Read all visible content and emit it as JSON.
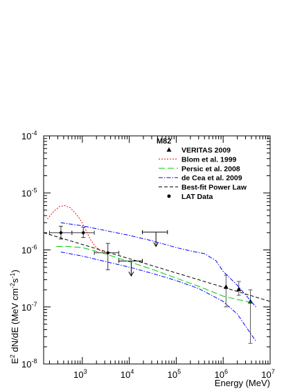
{
  "chart_data": {
    "type": "scatter",
    "title": "",
    "xlabel": "Energy (MeV)",
    "ylabel": {
      "prefix": "E",
      "prefix_sup": "2",
      "main": " dN/dE (MeV cm",
      "unit_sup1": "-2",
      "mid": "s",
      "unit_sup2": "-1",
      "suffix": ")"
    },
    "x_scale": "log",
    "y_scale": "log",
    "xlim": [
      150,
      10000000
    ],
    "ylim": [
      1e-08,
      0.0001
    ],
    "grid": false,
    "legend_position": "top-right",
    "x_ticks": [
      {
        "value": 1000,
        "base": "10",
        "exp": "3"
      },
      {
        "value": 10000,
        "base": "10",
        "exp": "4"
      },
      {
        "value": 100000,
        "base": "10",
        "exp": "5"
      },
      {
        "value": 1000000,
        "base": "10",
        "exp": "6"
      },
      {
        "value": 10000000,
        "base": "10",
        "exp": "7"
      }
    ],
    "y_ticks": [
      {
        "value": 1e-08,
        "base": "10",
        "exp": "-8"
      },
      {
        "value": 1e-07,
        "base": "10",
        "exp": "-7"
      },
      {
        "value": 1e-06,
        "base": "10",
        "exp": "-6"
      },
      {
        "value": 1e-05,
        "base": "10",
        "exp": "-5"
      },
      {
        "value": 0.0001,
        "base": "10",
        "exp": "-4"
      }
    ],
    "legend": {
      "header": "M82",
      "entries": [
        {
          "label": "VERITAS 2009",
          "symbol": "triangle",
          "color": "#000000"
        },
        {
          "label": "Blom et al. 1999",
          "symbol": "line",
          "dash": "2,2",
          "color": "#ff0000"
        },
        {
          "label": "Persic et al. 2008",
          "symbol": "line",
          "dash": "9,4",
          "color": "#00cc00"
        },
        {
          "label": "de Cea et al. 2009",
          "symbol": "line",
          "dash": "6,2,1.5,2",
          "color": "#0000ff"
        },
        {
          "label": "Best-fit Power Law",
          "symbol": "line",
          "dash": "5,3",
          "color": "#000000"
        },
        {
          "label": "LAT Data",
          "symbol": "dot",
          "color": "#000000"
        }
      ]
    },
    "series": [
      {
        "name": "LAT Data",
        "kind": "points",
        "marker": "dot",
        "color": "#000000",
        "points": [
          {
            "x": 350,
            "y": 2e-06,
            "xlo": 200,
            "xhi": 600,
            "ylo": 1.55e-06,
            "yhi": 2.6e-06
          },
          {
            "x": 1050,
            "y": 2e-06,
            "xlo": 600,
            "xhi": 1800,
            "ylo": 1.65e-06,
            "yhi": 2.5e-06
          },
          {
            "x": 3500,
            "y": 8.9e-07,
            "xlo": 1800,
            "xhi": 6000,
            "ylo": 4.5e-07,
            "yhi": 1.3e-06
          }
        ]
      },
      {
        "name": "LAT Upper Limits",
        "kind": "upper_limits",
        "color": "#000000",
        "points": [
          {
            "x": 11000,
            "y": 6.4e-07,
            "xlo": 6000,
            "xhi": 19000,
            "ylow": 3.5e-07
          },
          {
            "x": 37000,
            "y": 2.05e-06,
            "xlo": 19000,
            "xhi": 65000,
            "ylow": 1.15e-06
          }
        ]
      },
      {
        "name": "VERITAS 2009",
        "kind": "points",
        "marker": "triangle",
        "color": "#000000",
        "points": [
          {
            "x": 1150000,
            "y": 2.25e-07,
            "ylo": 1e-07,
            "yhi": 3.6e-07
          },
          {
            "x": 2150000,
            "y": 2.05e-07,
            "ylo": 1.6e-07,
            "yhi": 2.8e-07
          },
          {
            "x": 3800000,
            "y": 1.25e-07,
            "ylo": 2.3e-08,
            "yhi": 2e-07
          }
        ]
      },
      {
        "name": "Blom et al. 1999",
        "kind": "line",
        "color": "#ff0000",
        "dash": "2,2",
        "points": [
          [
            180,
            3.5e-06
          ],
          [
            250,
            4.8e-06
          ],
          [
            330,
            5.8e-06
          ],
          [
            420,
            6e-06
          ],
          [
            550,
            5.5e-06
          ],
          [
            750,
            4.2e-06
          ],
          [
            950,
            3.2e-06
          ],
          [
            1200,
            2.2e-06
          ],
          [
            1500,
            1.5e-06
          ],
          [
            1900,
            1.15e-06
          ],
          [
            2500,
            9.5e-07
          ],
          [
            3300,
            8.8e-07
          ]
        ]
      },
      {
        "name": "Persic et al. 2008",
        "kind": "line",
        "color": "#00cc00",
        "dash": "9,4",
        "points": [
          [
            280,
            1.15e-06
          ],
          [
            500,
            1.15e-06
          ],
          [
            1000,
            1.1e-06
          ],
          [
            3000,
            8.6e-07
          ],
          [
            10000,
            6.2e-07
          ],
          [
            30000,
            4.6e-07
          ],
          [
            100000,
            3.2e-07
          ],
          [
            300000,
            2.3e-07
          ],
          [
            1000000,
            1.55e-07
          ],
          [
            2000000,
            1.35e-07
          ],
          [
            4000000,
            1.2e-07
          ]
        ]
      },
      {
        "name": "de Cea et al. 2009 (upper)",
        "kind": "line",
        "color": "#0000ff",
        "dash": "6,2,1.5,2",
        "points": [
          [
            350,
            3e-06
          ],
          [
            1000,
            2.65e-06
          ],
          [
            3000,
            2.2e-06
          ],
          [
            10000,
            1.8e-06
          ],
          [
            30000,
            1.45e-06
          ],
          [
            100000,
            1.1e-06
          ],
          [
            200000,
            9.6e-07
          ],
          [
            400000,
            8.6e-07
          ],
          [
            700000,
            6.5e-07
          ],
          [
            1000000,
            4.2e-07
          ],
          [
            2000000,
            2.4e-07
          ],
          [
            5000000,
            1e-07
          ]
        ]
      },
      {
        "name": "de Cea et al. 2009 (lower)",
        "kind": "line",
        "color": "#0000ff",
        "dash": "6,2,1.5,2",
        "points": [
          [
            350,
            9.2e-07
          ],
          [
            1000,
            7.8e-07
          ],
          [
            3000,
            6.3e-07
          ],
          [
            10000,
            5e-07
          ],
          [
            30000,
            3.9e-07
          ],
          [
            100000,
            2.9e-07
          ],
          [
            300000,
            2.1e-07
          ],
          [
            1000000,
            1.25e-07
          ],
          [
            2000000,
            7.5e-08
          ],
          [
            5000000,
            2.5e-08
          ]
        ]
      },
      {
        "name": "Best-fit Power Law",
        "kind": "line",
        "color": "#000000",
        "dash": "5,3",
        "points": [
          [
            150,
            2e-06
          ],
          [
            10000000,
            1.25e-07
          ]
        ]
      }
    ]
  }
}
